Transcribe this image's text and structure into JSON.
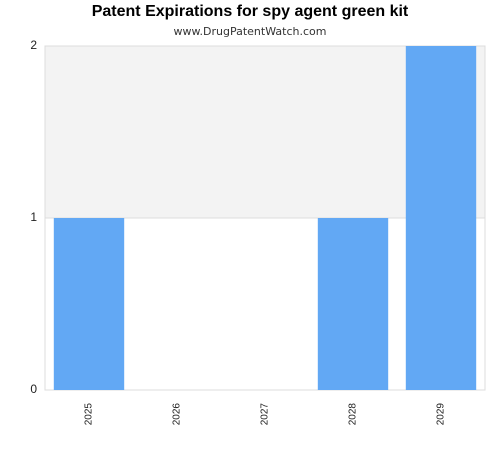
{
  "chart_data": {
    "type": "bar",
    "title": "Patent Expirations for spy agent green kit",
    "subtitle": "www.DrugPatentWatch.com",
    "categories": [
      "2025",
      "2026",
      "2027",
      "2028",
      "2029"
    ],
    "values": [
      1,
      0,
      0,
      1,
      2
    ],
    "ylim": [
      0,
      2
    ],
    "yticks": [
      "0",
      "1",
      "2"
    ],
    "bar_color": "#62a8f4",
    "band_color": "#f3f3f3",
    "xlabel": "",
    "ylabel": "",
    "grid": true
  }
}
